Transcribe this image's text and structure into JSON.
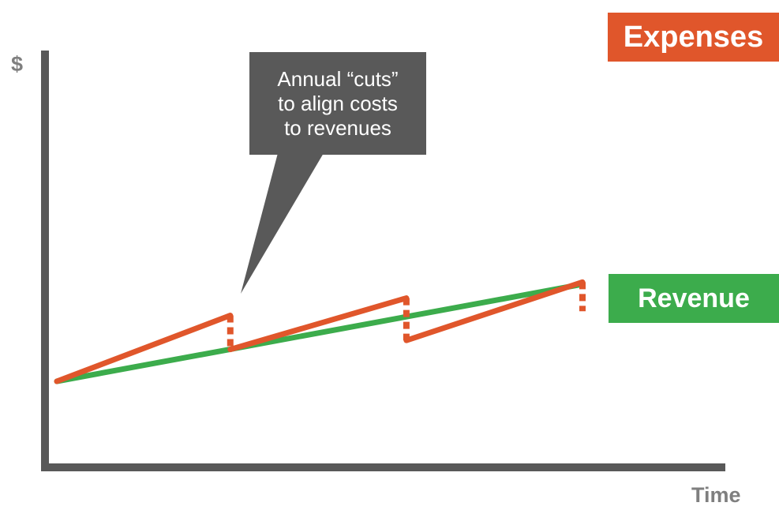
{
  "axes": {
    "y_label": "$",
    "x_label": "Time"
  },
  "legend": {
    "expenses": "Expenses",
    "revenue": "Revenue"
  },
  "callout": {
    "lines": [
      "Annual “cuts”",
      "to align costs",
      "to revenues"
    ]
  },
  "colors": {
    "expenses": "#e0562b",
    "revenue": "#3cac4c",
    "axis": "#595959",
    "callout": "#595959",
    "axis_label": "#7f7f7f"
  },
  "chart_data": {
    "type": "line",
    "title": "",
    "xlabel": "Time",
    "ylabel": "$",
    "series": [
      {
        "name": "Revenue",
        "points": [
          [
            0,
            0
          ],
          [
            4,
            2.8
          ]
        ]
      },
      {
        "name": "Expenses",
        "segments": [
          [
            [
              0,
              0
            ],
            [
              1.32,
              1.9
            ]
          ],
          [
            [
              1.32,
              0.92
            ],
            [
              2.66,
              2.4
            ]
          ],
          [
            [
              2.66,
              1.18
            ],
            [
              4,
              2.86
            ]
          ]
        ]
      }
    ],
    "cuts": [
      {
        "x": 1.32,
        "from": 1.9,
        "to": 0.92
      },
      {
        "x": 2.66,
        "from": 2.4,
        "to": 1.18
      },
      {
        "x": 4,
        "from": 2.86,
        "to": 2.02
      }
    ],
    "annotations": [
      "Annual “cuts” to align costs to revenues"
    ]
  }
}
